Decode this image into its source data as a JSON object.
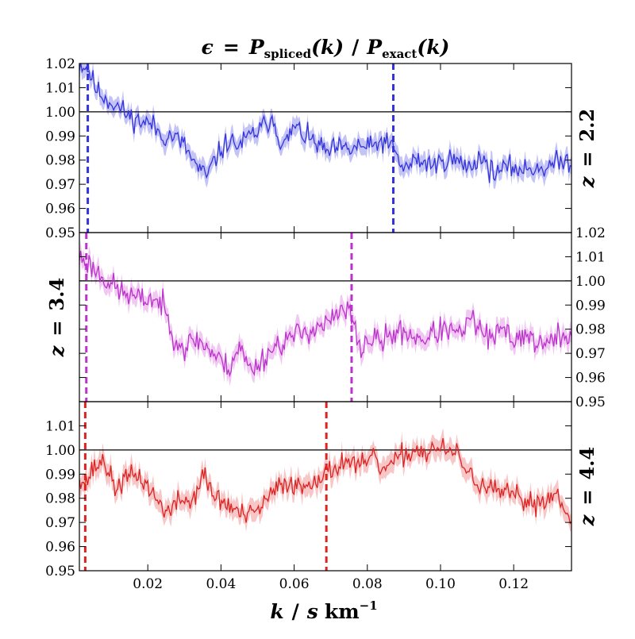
{
  "chart_data": {
    "type": "line",
    "title": "ϵ = P_spliced(k) / P_exact(k)",
    "title_parts": {
      "lhs": "ϵ",
      "eq": "=",
      "P": "P",
      "num_sub": "spliced",
      "arg": "(k)",
      "slash": "/",
      "den_sub": "exact"
    },
    "xlabel": "k / s km⁻¹",
    "xlabel_parts": {
      "k": "k",
      "slash": "/",
      "s": "s",
      "km": "km",
      "exp": "−1"
    },
    "xlim": [
      0.0013,
      0.1358
    ],
    "x_ticks": [
      "0.02",
      "0.04",
      "0.06",
      "0.08",
      "0.10",
      "0.12"
    ],
    "x_tick_values": [
      0.02,
      0.04,
      0.06,
      0.08,
      0.1,
      0.12
    ],
    "ylim": [
      0.95,
      1.02
    ],
    "reference_line_y": 1.0,
    "k_min": 0.0013,
    "k_max": 0.1358,
    "panels": [
      {
        "label": "z = 2.2",
        "label_parts": {
          "z": "z",
          "eq": "=",
          "value": "2.2"
        },
        "label_side": "right",
        "tick_side": "left",
        "tick_labels": [
          "0.95",
          "0.96",
          "0.97",
          "0.98",
          "0.99",
          "1.00",
          "1.01",
          "1.02"
        ],
        "color": "#3333dd",
        "band_color": "#c3c3f5",
        "vlines_k": [
          0.0036,
          0.0871
        ],
        "anchors_k": [
          0.0013,
          0.0036,
          0.006,
          0.009,
          0.012,
          0.015,
          0.018,
          0.021,
          0.024,
          0.027,
          0.03,
          0.033,
          0.036,
          0.039,
          0.042,
          0.045,
          0.048,
          0.051,
          0.054,
          0.057,
          0.06,
          0.063,
          0.066,
          0.069,
          0.072,
          0.075,
          0.078,
          0.081,
          0.084,
          0.087,
          0.09,
          0.093,
          0.096,
          0.099,
          0.102,
          0.105,
          0.108,
          0.111,
          0.114,
          0.117,
          0.12,
          0.123,
          0.126,
          0.129,
          0.132,
          0.1358
        ],
        "anchors_v": [
          1.02,
          1.018,
          1.009,
          1.005,
          1.002,
          0.998,
          0.996,
          0.995,
          0.99,
          0.99,
          0.986,
          0.978,
          0.973,
          0.982,
          0.988,
          0.986,
          0.99,
          0.993,
          0.998,
          0.985,
          0.994,
          0.99,
          0.987,
          0.983,
          0.985,
          0.984,
          0.986,
          0.985,
          0.988,
          0.985,
          0.976,
          0.98,
          0.979,
          0.978,
          0.981,
          0.979,
          0.977,
          0.982,
          0.975,
          0.976,
          0.977,
          0.976,
          0.977,
          0.977,
          0.979,
          0.98
        ],
        "band_halfwidth": 0.0035,
        "noise": 0.0035,
        "seed": 11
      },
      {
        "label": "z = 3.4",
        "label_parts": {
          "z": "z",
          "eq": "=",
          "value": "3.4"
        },
        "label_side": "left",
        "tick_side": "right",
        "tick_labels": [
          "0.95",
          "0.96",
          "0.97",
          "0.98",
          "0.99",
          "1.00",
          "1.01",
          "1.02"
        ],
        "color": "#bb33cc",
        "band_color": "#f0c8f2",
        "vlines_k": [
          0.0032,
          0.0757
        ],
        "anchors_k": [
          0.0013,
          0.0032,
          0.006,
          0.009,
          0.012,
          0.015,
          0.018,
          0.021,
          0.024,
          0.027,
          0.03,
          0.033,
          0.036,
          0.039,
          0.042,
          0.045,
          0.048,
          0.051,
          0.054,
          0.057,
          0.06,
          0.063,
          0.066,
          0.069,
          0.072,
          0.075,
          0.078,
          0.081,
          0.084,
          0.087,
          0.09,
          0.093,
          0.096,
          0.099,
          0.102,
          0.105,
          0.108,
          0.111,
          0.114,
          0.117,
          0.12,
          0.123,
          0.126,
          0.129,
          0.132,
          0.1358
        ],
        "anchors_v": [
          1.01,
          1.008,
          1.004,
          1.0,
          0.996,
          0.994,
          0.992,
          0.993,
          0.99,
          0.978,
          0.972,
          0.976,
          0.973,
          0.968,
          0.964,
          0.973,
          0.963,
          0.967,
          0.972,
          0.975,
          0.977,
          0.979,
          0.981,
          0.982,
          0.986,
          0.988,
          0.972,
          0.976,
          0.975,
          0.978,
          0.979,
          0.977,
          0.976,
          0.979,
          0.98,
          0.977,
          0.984,
          0.98,
          0.975,
          0.98,
          0.976,
          0.978,
          0.975,
          0.973,
          0.977,
          0.978
        ],
        "band_halfwidth": 0.0035,
        "noise": 0.004,
        "seed": 23
      },
      {
        "label": "z = 4.4",
        "label_parts": {
          "z": "z",
          "eq": "=",
          "value": "4.4"
        },
        "label_side": "right",
        "tick_side": "left",
        "tick_labels": [
          "0.95",
          "0.96",
          "0.97",
          "0.98",
          "0.99",
          "1.00",
          "1.01"
        ],
        "color": "#dd2222",
        "band_color": "#f7c6c6",
        "vlines_k": [
          0.0029,
          0.0688
        ],
        "anchors_k": [
          0.0013,
          0.0029,
          0.005,
          0.008,
          0.011,
          0.014,
          0.017,
          0.02,
          0.023,
          0.026,
          0.029,
          0.032,
          0.035,
          0.038,
          0.041,
          0.044,
          0.047,
          0.05,
          0.053,
          0.056,
          0.059,
          0.062,
          0.065,
          0.069,
          0.072,
          0.075,
          0.078,
          0.081,
          0.084,
          0.087,
          0.09,
          0.093,
          0.096,
          0.099,
          0.102,
          0.105,
          0.108,
          0.111,
          0.114,
          0.117,
          0.12,
          0.123,
          0.126,
          0.129,
          0.132,
          0.1358
        ],
        "anchors_v": [
          0.99,
          0.986,
          0.992,
          0.996,
          0.984,
          0.988,
          0.99,
          0.985,
          0.978,
          0.974,
          0.98,
          0.978,
          0.99,
          0.981,
          0.978,
          0.975,
          0.972,
          0.975,
          0.98,
          0.985,
          0.987,
          0.984,
          0.988,
          0.99,
          0.994,
          0.996,
          0.992,
          0.997,
          0.992,
          0.994,
          0.998,
          1.0,
          0.999,
          1.001,
          0.999,
          0.998,
          0.989,
          0.986,
          0.983,
          0.982,
          0.981,
          0.979,
          0.978,
          0.98,
          0.982,
          0.972
        ],
        "band_halfwidth": 0.004,
        "noise": 0.0035,
        "seed": 37
      }
    ]
  }
}
